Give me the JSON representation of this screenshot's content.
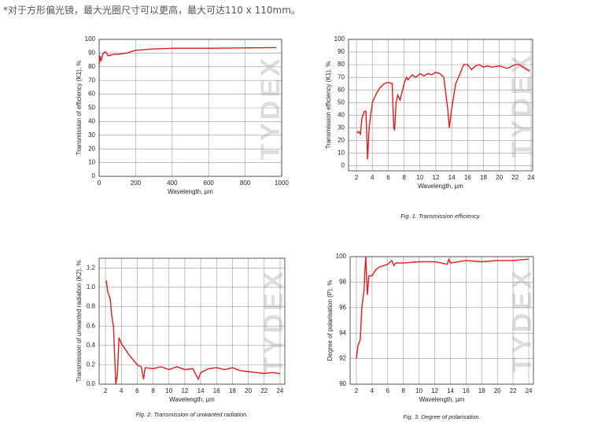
{
  "note": "*对于方形偏光镜，最大光圈尺寸可以更高，最大可达110 x 110mm。",
  "chart_data": [
    {
      "type": "line",
      "x_label": "Wavelength, µm",
      "y_label": "Transmission of efficiency (K1), %",
      "watermark": "TYDEX",
      "color": "#e01b1b",
      "grid": true,
      "xlim": [
        0,
        1000
      ],
      "xticks": [
        0,
        200,
        400,
        600,
        800,
        1000
      ],
      "ylim": [
        0,
        100
      ],
      "yticks": [
        0,
        10,
        20,
        30,
        40,
        50,
        60,
        70,
        80,
        90,
        100
      ],
      "x": [
        1,
        5,
        10,
        20,
        30,
        40,
        50,
        80,
        100,
        150,
        200,
        300,
        400,
        600,
        800,
        970
      ],
      "values": [
        82,
        88,
        84,
        89,
        91,
        90,
        88,
        89,
        89,
        90,
        92,
        93,
        93.5,
        93.5,
        93.8,
        94
      ]
    },
    {
      "type": "line",
      "x_label": "Wavelength, µm",
      "y_label": "Transmission efficiency (K1), %",
      "watermark": "TYDEX",
      "caption": "Fig. 1. Transmission efficiency.",
      "color": "#e01b1b",
      "grid": true,
      "xlim": [
        1,
        24.2
      ],
      "xticks": [
        2,
        4,
        6,
        8,
        10,
        12,
        14,
        16,
        18,
        20,
        22,
        24
      ],
      "ylim": [
        -4,
        100
      ],
      "yticks": [
        0,
        10,
        20,
        30,
        40,
        50,
        60,
        70,
        80,
        90,
        100
      ],
      "x": [
        2,
        2.3,
        2.5,
        2.7,
        3,
        3.2,
        3.4,
        3.6,
        3.8,
        4,
        4.5,
        5,
        5.5,
        6,
        6.5,
        6.7,
        6.8,
        7,
        7.2,
        7.5,
        8,
        8.3,
        8.5,
        9,
        9.5,
        10,
        10.5,
        11,
        11.5,
        12,
        12.5,
        13,
        13.5,
        13.7,
        14,
        14.5,
        15,
        15.5,
        16,
        16.5,
        17,
        17.5,
        18,
        18.5,
        19,
        20,
        21,
        22,
        22.5,
        23,
        23.8
      ],
      "values": [
        26,
        27,
        25,
        38,
        43,
        43,
        5,
        30,
        40,
        50,
        57,
        62,
        65,
        66,
        65,
        30,
        28,
        50,
        56,
        52,
        65,
        70,
        68,
        72,
        70,
        73,
        71,
        73,
        72,
        74,
        73,
        70,
        45,
        30,
        45,
        65,
        72,
        80,
        80,
        76,
        79,
        80,
        78,
        79,
        78,
        79,
        77,
        80,
        80,
        78,
        75
      ]
    },
    {
      "type": "line",
      "x_label": "Wavelength, µm",
      "y_label": "Transmission of unwanted radiation (K2), %",
      "watermark": "TYDEX",
      "caption": "Fig. 2. Transmission of unwanted radiation.",
      "color": "#e01b1b",
      "grid": true,
      "xlim": [
        1.2,
        24.6
      ],
      "xticks": [
        2,
        4,
        6,
        8,
        10,
        12,
        14,
        16,
        18,
        20,
        22,
        24
      ],
      "ylim": [
        0,
        1.3
      ],
      "yticks": [
        {
          "value": 0,
          "label": "0.0"
        },
        0.2,
        0.4,
        0.6,
        0.8,
        {
          "value": 1,
          "label": "1.0"
        },
        1.2
      ],
      "x": [
        2.1,
        2.3,
        2.6,
        2.8,
        3,
        3.2,
        3.3,
        3.5,
        3.7,
        4,
        4.5,
        5,
        5.5,
        6,
        6.5,
        6.8,
        7,
        8,
        9,
        10,
        11,
        12,
        13,
        13.7,
        14,
        15,
        16,
        17,
        18,
        19,
        20,
        21,
        22,
        23,
        24
      ],
      "values": [
        1.07,
        0.95,
        0.88,
        0.7,
        0.6,
        0.2,
        0,
        0.1,
        0.48,
        0.42,
        0.36,
        0.3,
        0.25,
        0.2,
        0.18,
        0.05,
        0.17,
        0.16,
        0.18,
        0.15,
        0.18,
        0.15,
        0.16,
        0.05,
        0.12,
        0.16,
        0.17,
        0.15,
        0.17,
        0.14,
        0.13,
        0.12,
        0.11,
        0.12,
        0.11
      ]
    },
    {
      "type": "line",
      "x_label": "Wavelength, µm",
      "y_label": "Degree of polarisation (P), %",
      "watermark": "TYDEX",
      "caption": "Fig. 3. Degree of polarisation.",
      "color": "#e01b1b",
      "grid": true,
      "xlim": [
        1.2,
        24.6
      ],
      "xticks": [
        2,
        4,
        6,
        8,
        10,
        12,
        14,
        16,
        18,
        20,
        22,
        24
      ],
      "ylim": [
        90,
        100
      ],
      "yticks": [
        90,
        92,
        94,
        96,
        98,
        100
      ],
      "x": [
        2,
        2.2,
        2.5,
        2.7,
        3,
        3.1,
        3.2,
        3.4,
        3.6,
        4,
        4.5,
        5,
        6,
        6.5,
        6.8,
        7,
        8,
        10,
        12,
        13.6,
        13.8,
        14,
        16,
        18,
        20,
        22,
        24
      ],
      "values": [
        92,
        93,
        93.5,
        96,
        97.5,
        99,
        100,
        97,
        98.5,
        98.5,
        99,
        99.2,
        99.4,
        99.7,
        99.3,
        99.5,
        99.5,
        99.6,
        99.6,
        99.4,
        99.8,
        99.5,
        99.7,
        99.6,
        99.7,
        99.7,
        99.8
      ]
    }
  ]
}
